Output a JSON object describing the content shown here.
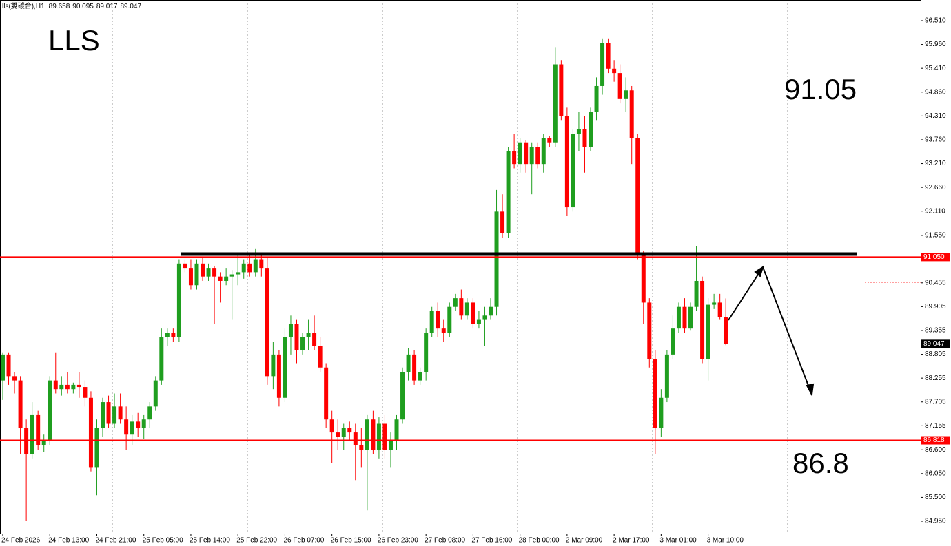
{
  "chart_data": {
    "type": "candlestick",
    "symbol": "lls(雙碳合),H1",
    "title": "LLS",
    "annotations": [
      "91.05",
      "86.8"
    ],
    "up_color": "#1f9e1f",
    "down_color": "#ff0000",
    "level_color": "#ff0000",
    "categories": [
      "24 Feb 2026",
      null,
      null,
      null,
      null,
      null,
      null,
      null,
      "24 Feb 13:00",
      null,
      null,
      null,
      null,
      null,
      null,
      null,
      "24 Feb 21:00",
      null,
      null,
      null,
      null,
      null,
      null,
      null,
      "25 Feb 05:00",
      null,
      null,
      null,
      null,
      null,
      null,
      null,
      "25 Feb 14:00",
      null,
      null,
      null,
      null,
      null,
      null,
      null,
      "25 Feb 22:00",
      null,
      null,
      null,
      null,
      null,
      null,
      null,
      "26 Feb 07:00",
      null,
      null,
      null,
      null,
      null,
      null,
      null,
      "26 Feb 15:00",
      null,
      null,
      null,
      null,
      null,
      null,
      null,
      "26 Feb 23:00",
      null,
      null,
      null,
      null,
      null,
      null,
      null,
      "27 Feb 08:00",
      null,
      null,
      null,
      null,
      null,
      null,
      null,
      "27 Feb 16:00",
      null,
      null,
      null,
      null,
      null,
      null,
      null,
      "28 Feb 00:00",
      null,
      null,
      null,
      null,
      null,
      null,
      null,
      "2 Mar 09:00",
      null,
      null,
      null,
      null,
      null,
      null,
      null,
      "2 Mar 17:00",
      null,
      null,
      null,
      null,
      null,
      null,
      null,
      "3 Mar 01:00",
      null,
      null,
      null,
      null,
      null,
      null,
      null,
      "3 Mar 10:00",
      null,
      null,
      null
    ],
    "open": [
      88.2,
      88.8,
      88.3,
      88.2,
      87.1,
      86.5,
      87.4,
      86.7,
      86.8,
      88.2,
      88.0,
      88.1,
      88.0,
      88.1,
      88.05,
      87.8,
      86.2,
      87.1,
      87.7,
      87.2,
      87.6,
      87.3,
      86.95,
      87.25,
      87.1,
      87.3,
      87.6,
      88.2,
      89.2,
      89.3,
      89.2,
      90.9,
      90.8,
      90.4,
      90.9,
      90.6,
      90.8,
      90.6,
      90.5,
      90.6,
      90.65,
      90.7,
      90.9,
      90.7,
      91.0,
      90.8,
      88.3,
      88.8,
      87.8,
      89.2,
      89.5,
      88.9,
      89.2,
      89.3,
      89.0,
      88.5,
      87.3,
      87.0,
      86.9,
      87.1,
      87.0,
      86.7,
      86.6,
      87.3,
      86.6,
      87.2,
      86.6,
      86.8,
      87.3,
      88.4,
      88.8,
      88.2,
      88.4,
      89.3,
      89.8,
      89.4,
      89.3,
      89.9,
      90.1,
      89.7,
      90.0,
      89.5,
      89.6,
      89.7,
      89.9,
      92.1,
      91.6,
      93.5,
      93.2,
      93.7,
      93.2,
      93.6,
      93.2,
      93.8,
      93.7,
      95.5,
      94.3,
      92.2,
      93.9,
      94.0,
      93.6,
      94.4,
      95.0,
      96.0,
      95.4,
      95.3,
      94.7,
      94.9,
      93.8,
      91.1,
      90.0,
      88.7,
      87.1,
      87.8,
      88.8,
      89.4,
      89.9,
      89.4,
      89.9,
      90.5,
      88.7,
      89.95,
      90.0,
      89.658
    ],
    "high": [
      88.85,
      88.85,
      88.4,
      88.3,
      87.3,
      87.7,
      87.5,
      86.95,
      88.3,
      88.85,
      88.3,
      88.4,
      88.15,
      88.4,
      88.2,
      87.95,
      87.3,
      87.8,
      87.85,
      87.9,
      87.9,
      87.6,
      87.4,
      87.45,
      87.4,
      87.7,
      88.3,
      89.4,
      89.4,
      89.4,
      91.0,
      91.0,
      91.0,
      91.0,
      91.05,
      90.9,
      90.85,
      90.7,
      90.8,
      90.75,
      91.1,
      91.0,
      91.1,
      91.25,
      91.1,
      91.05,
      89.1,
      88.9,
      89.4,
      89.7,
      89.6,
      89.3,
      89.6,
      89.7,
      89.2,
      88.6,
      87.5,
      87.3,
      87.2,
      87.25,
      87.2,
      87.1,
      87.4,
      87.5,
      87.35,
      87.4,
      87.0,
      87.4,
      88.5,
      88.95,
      88.9,
      88.5,
      89.4,
      89.9,
      90.0,
      89.6,
      90.0,
      90.2,
      90.3,
      90.1,
      90.1,
      89.8,
      89.9,
      90.1,
      92.6,
      92.5,
      93.6,
      93.9,
      93.8,
      93.75,
      93.7,
      93.7,
      93.9,
      93.85,
      95.9,
      95.6,
      94.5,
      94.0,
      94.4,
      94.3,
      94.5,
      95.2,
      96.1,
      96.1,
      95.6,
      95.5,
      95.2,
      95.0,
      93.9,
      91.2,
      90.1,
      88.9,
      88.0,
      88.9,
      89.7,
      90.0,
      90.1,
      90.0,
      91.3,
      90.6,
      90.1,
      90.2,
      90.2,
      90.095
    ],
    "low": [
      87.75,
      88.1,
      87.9,
      86.5,
      84.95,
      86.4,
      86.6,
      86.55,
      86.7,
      87.9,
      87.85,
      87.9,
      87.9,
      87.8,
      87.6,
      86.1,
      85.55,
      86.9,
      87.1,
      87.1,
      87.2,
      86.6,
      86.7,
      86.9,
      86.85,
      87.1,
      87.5,
      88.1,
      89.0,
      89.1,
      89.1,
      90.7,
      90.3,
      90.3,
      90.5,
      90.5,
      89.5,
      90.0,
      90.4,
      89.6,
      90.4,
      90.55,
      90.6,
      90.6,
      90.6,
      88.1,
      88.0,
      87.6,
      87.7,
      88.8,
      88.6,
      88.8,
      88.9,
      88.9,
      88.4,
      87.1,
      86.3,
      86.6,
      86.6,
      86.8,
      85.9,
      86.2,
      85.2,
      86.5,
      86.4,
      86.4,
      86.2,
      86.6,
      87.2,
      88.2,
      88.1,
      88.1,
      88.2,
      89.2,
      89.2,
      89.1,
      89.2,
      89.8,
      89.6,
      89.6,
      89.4,
      89.4,
      89.0,
      89.6,
      89.7,
      91.5,
      91.5,
      93.1,
      93.0,
      93.0,
      92.5,
      93.1,
      93.0,
      93.6,
      93.6,
      94.2,
      92.0,
      92.1,
      93.5,
      93.0,
      93.5,
      94.2,
      94.8,
      95.3,
      95.1,
      94.6,
      94.4,
      93.2,
      91.0,
      89.5,
      88.5,
      86.5,
      86.9,
      87.7,
      88.7,
      89.3,
      89.3,
      89.35,
      89.8,
      88.6,
      88.2,
      89.85,
      89.6,
      89.017
    ],
    "close": [
      88.8,
      88.3,
      88.2,
      87.1,
      86.5,
      87.4,
      86.7,
      86.8,
      88.2,
      88.0,
      88.1,
      88.0,
      88.1,
      88.05,
      87.8,
      86.2,
      87.1,
      87.7,
      87.2,
      87.6,
      87.3,
      86.95,
      87.25,
      87.1,
      87.3,
      87.6,
      88.2,
      89.2,
      89.3,
      89.2,
      90.9,
      90.8,
      90.4,
      90.9,
      90.6,
      90.8,
      90.6,
      90.5,
      90.6,
      90.65,
      90.7,
      90.9,
      90.7,
      91.0,
      90.8,
      88.3,
      88.8,
      87.8,
      89.2,
      89.5,
      88.9,
      89.2,
      89.3,
      89.0,
      88.5,
      87.3,
      87.0,
      86.9,
      87.1,
      87.0,
      86.7,
      86.6,
      87.3,
      86.6,
      87.2,
      86.6,
      86.8,
      87.3,
      88.4,
      88.8,
      88.2,
      88.4,
      89.3,
      89.8,
      89.4,
      89.3,
      89.9,
      90.1,
      89.7,
      90.0,
      89.5,
      89.6,
      89.7,
      89.9,
      92.1,
      91.6,
      93.5,
      93.2,
      93.7,
      93.2,
      93.6,
      93.2,
      93.8,
      93.7,
      95.5,
      94.3,
      92.2,
      93.9,
      94.0,
      93.6,
      94.4,
      95.0,
      96.0,
      95.4,
      95.3,
      94.7,
      94.9,
      93.8,
      91.1,
      90.0,
      88.7,
      87.1,
      87.8,
      88.8,
      89.4,
      89.9,
      89.4,
      89.9,
      90.5,
      88.7,
      89.95,
      90.0,
      89.658,
      89.047
    ],
    "levels": [
      {
        "value": 91.05,
        "label": "91.050"
      },
      {
        "value": 86.818,
        "label": "86.818"
      }
    ],
    "resistance": 91.12,
    "ask": 90.47,
    "ylim": [
      84.664,
      96.987
    ],
    "yticks": [
      {
        "value": 96.51,
        "label": "96.510"
      },
      {
        "value": 95.96,
        "label": "95.960"
      },
      {
        "value": 95.41,
        "label": "95.410"
      },
      {
        "value": 94.86,
        "label": "94.860"
      },
      {
        "value": 94.31,
        "label": "94.310"
      },
      {
        "value": 93.76,
        "label": "93.760"
      },
      {
        "value": 93.21,
        "label": "93.210"
      },
      {
        "value": 92.66,
        "label": "92.660"
      },
      {
        "value": 92.11,
        "label": "92.110"
      },
      {
        "value": 91.55,
        "label": "91.550"
      },
      90.455,
      89.905,
      89.355,
      88.805,
      88.255,
      87.705,
      87.155,
      {
        "value": 86.6,
        "label": "86.600"
      },
      {
        "value": 86.05,
        "label": "86.050"
      },
      {
        "value": 85.5,
        "label": "85.500"
      },
      {
        "value": 84.95,
        "label": "84.950"
      }
    ]
  }
}
